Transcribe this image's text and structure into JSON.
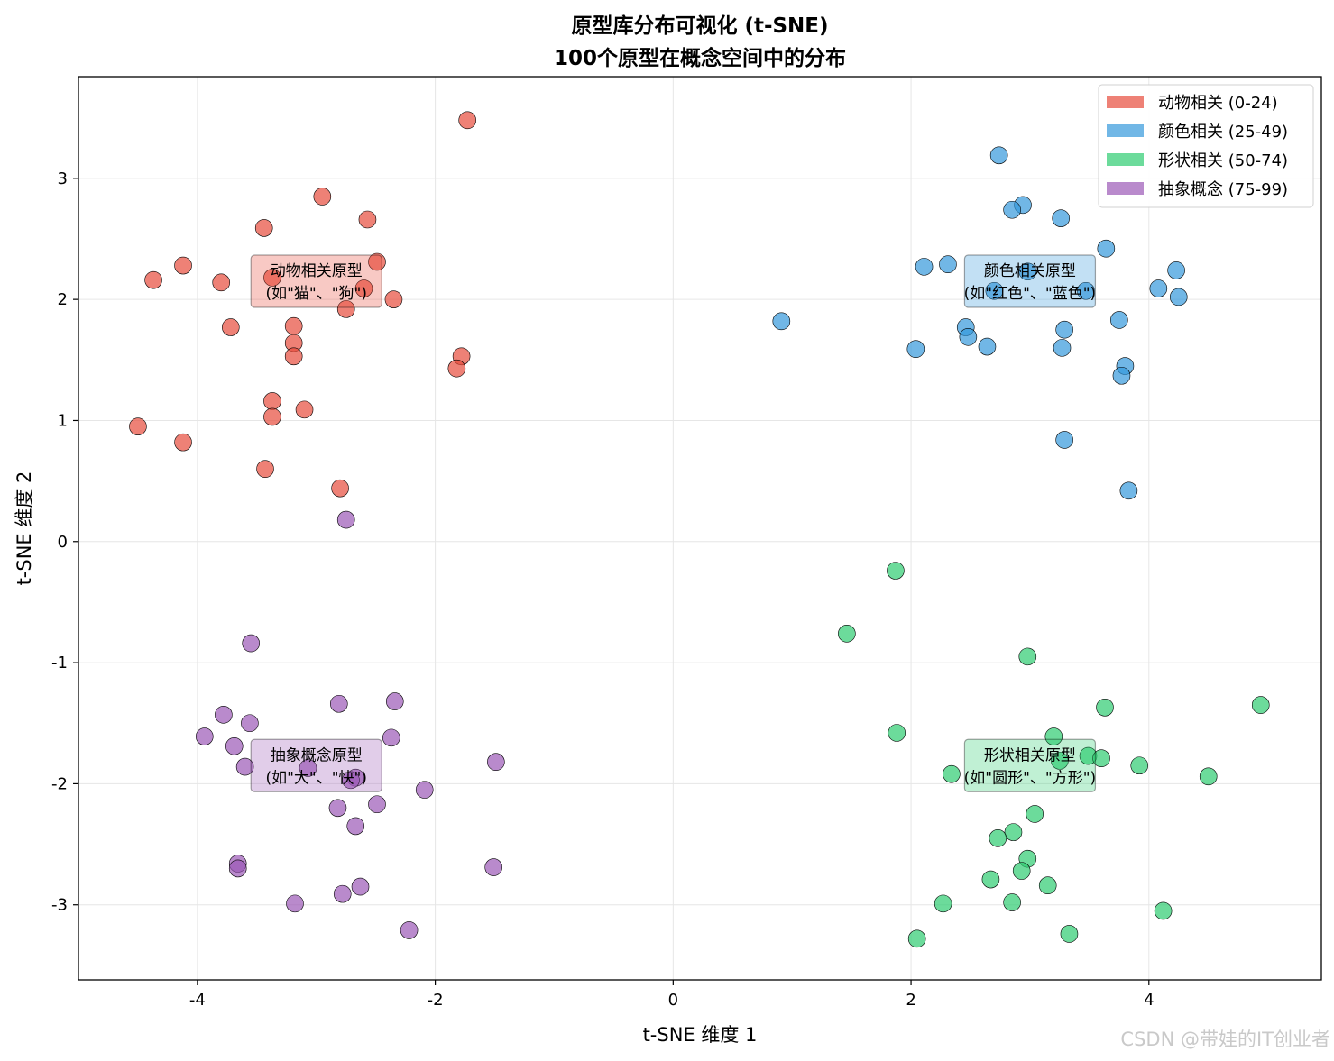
{
  "chart_data": {
    "type": "scatter",
    "title": [
      "原型库分布可视化 (t-SNE)",
      "100个原型在概念空间中的分布"
    ],
    "xlabel": "t-SNE 维度 1",
    "ylabel": "t-SNE 维度 2",
    "xlim": [
      -5.0,
      5.45
    ],
    "ylim": [
      -3.62,
      3.84
    ],
    "xticks": [
      -4,
      -2,
      0,
      2,
      4
    ],
    "xtick_labels": [
      "-4",
      "-2",
      "0",
      "2",
      "4"
    ],
    "yticks": [
      -3,
      -2,
      -1,
      0,
      1,
      2,
      3
    ],
    "ytick_labels": [
      "-3",
      "-2",
      "-1",
      "0",
      "1",
      "2",
      "3"
    ],
    "grid": true,
    "legend_position": "top-right",
    "series": [
      {
        "name": "动物相关 (0-24)",
        "color": "#e74c3c",
        "points": [
          [
            -1.73,
            3.48
          ],
          [
            -2.95,
            2.85
          ],
          [
            -3.44,
            2.59
          ],
          [
            -2.57,
            2.66
          ],
          [
            -4.12,
            2.28
          ],
          [
            -4.37,
            2.16
          ],
          [
            -3.8,
            2.14
          ],
          [
            -3.37,
            2.18
          ],
          [
            -2.49,
            2.31
          ],
          [
            -2.35,
            2.0
          ],
          [
            -2.75,
            1.92
          ],
          [
            -3.72,
            1.77
          ],
          [
            -3.19,
            1.78
          ],
          [
            -3.19,
            1.64
          ],
          [
            -3.19,
            1.53
          ],
          [
            -1.78,
            1.53
          ],
          [
            -1.82,
            1.43
          ],
          [
            -3.37,
            1.16
          ],
          [
            -3.37,
            1.03
          ],
          [
            -3.1,
            1.09
          ],
          [
            -4.5,
            0.95
          ],
          [
            -4.12,
            0.82
          ],
          [
            -3.43,
            0.6
          ],
          [
            -2.8,
            0.44
          ],
          [
            -2.6,
            2.09
          ]
        ]
      },
      {
        "name": "颜色相关 (25-49)",
        "color": "#3498db",
        "points": [
          [
            2.74,
            3.19
          ],
          [
            2.94,
            2.78
          ],
          [
            2.85,
            2.74
          ],
          [
            3.26,
            2.67
          ],
          [
            3.64,
            2.42
          ],
          [
            2.11,
            2.27
          ],
          [
            2.31,
            2.29
          ],
          [
            4.23,
            2.24
          ],
          [
            4.08,
            2.09
          ],
          [
            4.25,
            2.02
          ],
          [
            3.47,
            2.07
          ],
          [
            2.7,
            2.07
          ],
          [
            2.98,
            2.23
          ],
          [
            0.91,
            1.82
          ],
          [
            3.75,
            1.83
          ],
          [
            2.46,
            1.77
          ],
          [
            3.29,
            1.75
          ],
          [
            2.48,
            1.69
          ],
          [
            2.64,
            1.61
          ],
          [
            2.04,
            1.59
          ],
          [
            3.27,
            1.6
          ],
          [
            3.8,
            1.45
          ],
          [
            3.77,
            1.37
          ],
          [
            3.29,
            0.84
          ],
          [
            3.83,
            0.42
          ]
        ]
      },
      {
        "name": "形状相关 (50-74)",
        "color": "#2ecc71",
        "points": [
          [
            1.87,
            -0.24
          ],
          [
            1.46,
            -0.76
          ],
          [
            2.98,
            -0.95
          ],
          [
            4.94,
            -1.35
          ],
          [
            3.63,
            -1.37
          ],
          [
            1.88,
            -1.58
          ],
          [
            3.2,
            -1.61
          ],
          [
            3.49,
            -1.77
          ],
          [
            3.25,
            -1.81
          ],
          [
            3.6,
            -1.79
          ],
          [
            3.92,
            -1.85
          ],
          [
            2.34,
            -1.92
          ],
          [
            4.5,
            -1.94
          ],
          [
            3.04,
            -2.25
          ],
          [
            2.86,
            -2.4
          ],
          [
            2.73,
            -2.45
          ],
          [
            2.98,
            -2.62
          ],
          [
            2.93,
            -2.72
          ],
          [
            2.67,
            -2.79
          ],
          [
            3.15,
            -2.84
          ],
          [
            2.27,
            -2.99
          ],
          [
            2.85,
            -2.98
          ],
          [
            4.12,
            -3.05
          ],
          [
            3.33,
            -3.24
          ],
          [
            2.05,
            -3.28
          ]
        ]
      },
      {
        "name": "抽象概念 (75-99)",
        "color": "#9b59b6",
        "points": [
          [
            -2.75,
            0.18
          ],
          [
            -3.55,
            -0.84
          ],
          [
            -2.34,
            -1.32
          ],
          [
            -2.81,
            -1.34
          ],
          [
            -3.78,
            -1.43
          ],
          [
            -3.56,
            -1.5
          ],
          [
            -3.94,
            -1.61
          ],
          [
            -2.37,
            -1.62
          ],
          [
            -3.69,
            -1.69
          ],
          [
            -3.6,
            -1.86
          ],
          [
            -1.49,
            -1.82
          ],
          [
            -3.07,
            -1.87
          ],
          [
            -2.67,
            -1.95
          ],
          [
            -2.09,
            -2.05
          ],
          [
            -2.49,
            -2.17
          ],
          [
            -2.82,
            -2.2
          ],
          [
            -2.67,
            -2.35
          ],
          [
            -3.66,
            -2.66
          ],
          [
            -3.66,
            -2.7
          ],
          [
            -1.51,
            -2.69
          ],
          [
            -2.63,
            -2.85
          ],
          [
            -2.78,
            -2.91
          ],
          [
            -3.18,
            -2.99
          ],
          [
            -2.22,
            -3.21
          ],
          [
            -2.71,
            -1.97
          ]
        ]
      }
    ],
    "annotations": [
      {
        "lines": [
          "动物相关原型",
          "(如\"猫\"、\"狗\")"
        ],
        "x": -3.0,
        "y": 2.15,
        "color": "#e74c3c"
      },
      {
        "lines": [
          "颜色相关原型",
          "(如\"红色\"、\"蓝色\")"
        ],
        "x": 3.0,
        "y": 2.15,
        "color": "#3498db"
      },
      {
        "lines": [
          "形状相关原型",
          "(如\"圆形\"、\"方形\")"
        ],
        "x": 3.0,
        "y": -1.85,
        "color": "#2ecc71"
      },
      {
        "lines": [
          "抽象概念原型",
          "(如\"大\"、\"快\")"
        ],
        "x": -3.0,
        "y": -1.85,
        "color": "#9b59b6"
      }
    ]
  },
  "watermark": "CSDN @带娃的IT创业者"
}
